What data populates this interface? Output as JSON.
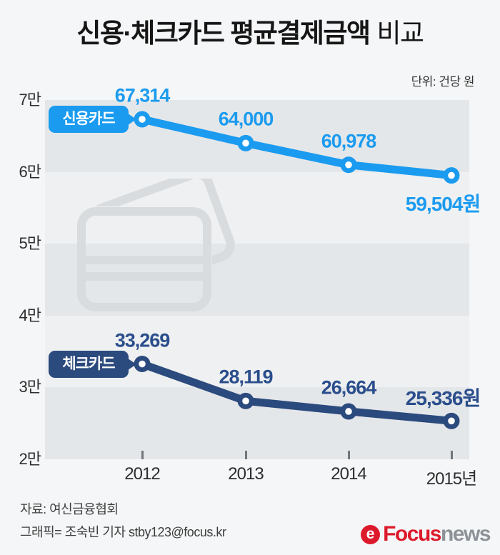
{
  "title": {
    "bold": "신용·체크카드 평균결제금액",
    "regular": "비교"
  },
  "unit_label": "단위: 건당 원",
  "colors": {
    "page_bg": "#f5f6f7",
    "plot_bg": "#eef0f1",
    "band": "#e4e7e9",
    "title": "#161616",
    "credit_line": "#1b9bf0",
    "credit_text": "#1b9bf0",
    "check_line": "#2b4a7d",
    "check_text": "#2a4d8c",
    "watermark": "#d9dcde",
    "logo_red": "#dd1a2c",
    "logo_gray": "#8d9298"
  },
  "chart_data": {
    "type": "line",
    "x": [
      2012,
      2013,
      2014,
      2015
    ],
    "x_tick_labels": [
      "2012",
      "2013",
      "2014",
      "2015년"
    ],
    "y_axis": {
      "tick_labels": [
        "7만",
        "6만",
        "5만",
        "4만",
        "3만",
        "2만"
      ],
      "tick_values": [
        70000,
        60000,
        50000,
        40000,
        30000,
        20000
      ],
      "ylim": [
        20000,
        70000
      ]
    },
    "grid": "alternating-horizontal-bands",
    "legend_position": "left-of-first-point",
    "series": [
      {
        "name": "신용카드",
        "color": "#1b9bf0",
        "values": [
          67314,
          64000,
          60978,
          59504
        ],
        "point_labels": [
          "67,314",
          "64,000",
          "60,978",
          "59,504원"
        ]
      },
      {
        "name": "체크카드",
        "color": "#2b4a7d",
        "values": [
          33269,
          28119,
          26664,
          25336
        ],
        "point_labels": [
          "33,269",
          "28,119",
          "26,664",
          "25,336원"
        ]
      }
    ]
  },
  "watermark": "credit-cards-icon",
  "footer": {
    "source": "자료: 여신금융협회",
    "credit": "그래픽= 조숙빈 기자 stby123@focus.kr",
    "logo": {
      "icon": "focus-e-icon",
      "brand_red": "Focus",
      "brand_gray": "news"
    }
  }
}
